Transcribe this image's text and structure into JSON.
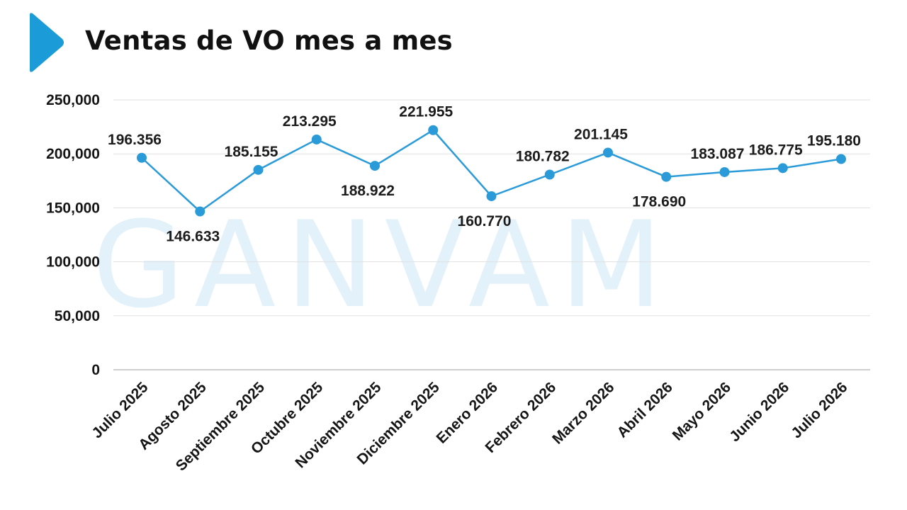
{
  "header": {
    "title": "Ventas de VO mes a mes",
    "arrow_icon": "chevron-right-icon",
    "watermark": "GANVAM"
  },
  "colors": {
    "accent": "#1b9bd8",
    "line": "#2a9bd8",
    "grid": "#e1e1e1",
    "axis": "#bdbdbd",
    "watermark": "#e3f1fa"
  },
  "chart_data": {
    "type": "line",
    "title": "Ventas de VO mes a mes",
    "xlabel": "",
    "ylabel": "",
    "categories": [
      "Julio 2025",
      "Agosto 2025",
      "Septiembre 2025",
      "Octubre 2025",
      "Noviembre 2025",
      "Diciembre 2025",
      "Enero 2026",
      "Febrero 2026",
      "Marzo 2026",
      "Abril 2026",
      "Mayo 2026",
      "Junio 2026",
      "Julio 2026"
    ],
    "series": [
      {
        "values": [
          196356,
          146633,
          185155,
          213295,
          188922,
          221955,
          160770,
          180782,
          201145,
          178690,
          183087,
          186775,
          195180
        ],
        "labels": [
          "196.356",
          "146.633",
          "185.155",
          "213.295",
          "188.922",
          "221.955",
          "160.770",
          "180.782",
          "201.145",
          "178.690",
          "183.087",
          "186.775",
          "195.180"
        ],
        "label_positions": [
          "above",
          "below",
          "above",
          "above",
          "below",
          "above",
          "below",
          "above",
          "above",
          "below",
          "above",
          "above",
          "above"
        ]
      }
    ],
    "yticks": [
      0,
      50000,
      100000,
      150000,
      200000,
      250000
    ],
    "ytick_labels": [
      "0",
      "50,000",
      "100,000",
      "150,000",
      "200,000",
      "250,000"
    ],
    "ylim": [
      0,
      250000
    ],
    "grid": true,
    "legend": "none"
  }
}
